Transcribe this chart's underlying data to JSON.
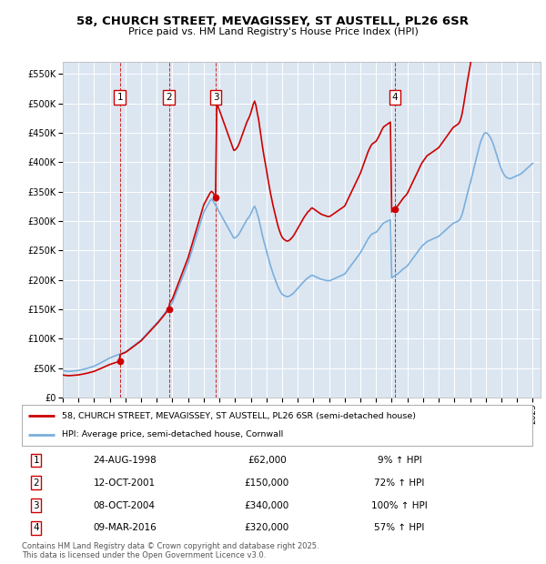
{
  "title_line1": "58, CHURCH STREET, MEVAGISSEY, ST AUSTELL, PL26 6SR",
  "title_line2": "Price paid vs. HM Land Registry's House Price Index (HPI)",
  "plot_bg_color": "#dce6f1",
  "fig_bg_color": "#ffffff",
  "red_color": "#cc0000",
  "blue_color": "#7aafdc",
  "yticks": [
    0,
    50000,
    100000,
    150000,
    200000,
    250000,
    300000,
    350000,
    400000,
    450000,
    500000,
    550000
  ],
  "ylim": [
    0,
    570000
  ],
  "xlim_start": 1995.0,
  "xlim_end": 2025.5,
  "transactions": [
    {
      "num": 1,
      "date_str": "24-AUG-1998",
      "year": 1998.64,
      "price": 62000,
      "pct": "9%",
      "label": "24-AUG-1998",
      "price_label": "£62,000"
    },
    {
      "num": 2,
      "date_str": "12-OCT-2001",
      "year": 2001.78,
      "price": 150000,
      "pct": "72%",
      "label": "12-OCT-2001",
      "price_label": "£150,000"
    },
    {
      "num": 3,
      "date_str": "08-OCT-2004",
      "year": 2004.77,
      "price": 340000,
      "pct": "100%",
      "label": "08-OCT-2004",
      "price_label": "£340,000"
    },
    {
      "num": 4,
      "date_str": "09-MAR-2016",
      "year": 2016.19,
      "price": 320000,
      "pct": "57%",
      "label": "09-MAR-2016",
      "price_label": "£320,000"
    }
  ],
  "legend_label_red": "58, CHURCH STREET, MEVAGISSEY, ST AUSTELL, PL26 6SR (semi-detached house)",
  "legend_label_blue": "HPI: Average price, semi-detached house, Cornwall",
  "footer": "Contains HM Land Registry data © Crown copyright and database right 2025.\nThis data is licensed under the Open Government Licence v3.0.",
  "hpi_years": [
    1995.0,
    1995.083,
    1995.167,
    1995.25,
    1995.333,
    1995.417,
    1995.5,
    1995.583,
    1995.667,
    1995.75,
    1995.833,
    1995.917,
    1996.0,
    1996.083,
    1996.167,
    1996.25,
    1996.333,
    1996.417,
    1996.5,
    1996.583,
    1996.667,
    1996.75,
    1996.833,
    1996.917,
    1997.0,
    1997.083,
    1997.167,
    1997.25,
    1997.333,
    1997.417,
    1997.5,
    1997.583,
    1997.667,
    1997.75,
    1997.833,
    1997.917,
    1998.0,
    1998.083,
    1998.167,
    1998.25,
    1998.333,
    1998.417,
    1998.5,
    1998.583,
    1998.667,
    1998.75,
    1998.833,
    1998.917,
    1999.0,
    1999.083,
    1999.167,
    1999.25,
    1999.333,
    1999.417,
    1999.5,
    1999.583,
    1999.667,
    1999.75,
    1999.833,
    1999.917,
    2000.0,
    2000.083,
    2000.167,
    2000.25,
    2000.333,
    2000.417,
    2000.5,
    2000.583,
    2000.667,
    2000.75,
    2000.833,
    2000.917,
    2001.0,
    2001.083,
    2001.167,
    2001.25,
    2001.333,
    2001.417,
    2001.5,
    2001.583,
    2001.667,
    2001.75,
    2001.833,
    2001.917,
    2002.0,
    2002.083,
    2002.167,
    2002.25,
    2002.333,
    2002.417,
    2002.5,
    2002.583,
    2002.667,
    2002.75,
    2002.833,
    2002.917,
    2003.0,
    2003.083,
    2003.167,
    2003.25,
    2003.333,
    2003.417,
    2003.5,
    2003.583,
    2003.667,
    2003.75,
    2003.833,
    2003.917,
    2004.0,
    2004.083,
    2004.167,
    2004.25,
    2004.333,
    2004.417,
    2004.5,
    2004.583,
    2004.667,
    2004.75,
    2004.833,
    2004.917,
    2005.0,
    2005.083,
    2005.167,
    2005.25,
    2005.333,
    2005.417,
    2005.5,
    2005.583,
    2005.667,
    2005.75,
    2005.833,
    2005.917,
    2006.0,
    2006.083,
    2006.167,
    2006.25,
    2006.333,
    2006.417,
    2006.5,
    2006.583,
    2006.667,
    2006.75,
    2006.833,
    2006.917,
    2007.0,
    2007.083,
    2007.167,
    2007.25,
    2007.333,
    2007.417,
    2007.5,
    2007.583,
    2007.667,
    2007.75,
    2007.833,
    2007.917,
    2008.0,
    2008.083,
    2008.167,
    2008.25,
    2008.333,
    2008.417,
    2008.5,
    2008.583,
    2008.667,
    2008.75,
    2008.833,
    2008.917,
    2009.0,
    2009.083,
    2009.167,
    2009.25,
    2009.333,
    2009.417,
    2009.5,
    2009.583,
    2009.667,
    2009.75,
    2009.833,
    2009.917,
    2010.0,
    2010.083,
    2010.167,
    2010.25,
    2010.333,
    2010.417,
    2010.5,
    2010.583,
    2010.667,
    2010.75,
    2010.833,
    2010.917,
    2011.0,
    2011.083,
    2011.167,
    2011.25,
    2011.333,
    2011.417,
    2011.5,
    2011.583,
    2011.667,
    2011.75,
    2011.833,
    2011.917,
    2012.0,
    2012.083,
    2012.167,
    2012.25,
    2012.333,
    2012.417,
    2012.5,
    2012.583,
    2012.667,
    2012.75,
    2012.833,
    2012.917,
    2013.0,
    2013.083,
    2013.167,
    2013.25,
    2013.333,
    2013.417,
    2013.5,
    2013.583,
    2013.667,
    2013.75,
    2013.833,
    2013.917,
    2014.0,
    2014.083,
    2014.167,
    2014.25,
    2014.333,
    2014.417,
    2014.5,
    2014.583,
    2014.667,
    2014.75,
    2014.833,
    2014.917,
    2015.0,
    2015.083,
    2015.167,
    2015.25,
    2015.333,
    2015.417,
    2015.5,
    2015.583,
    2015.667,
    2015.75,
    2015.833,
    2015.917,
    2016.0,
    2016.083,
    2016.167,
    2016.25,
    2016.333,
    2016.417,
    2016.5,
    2016.583,
    2016.667,
    2016.75,
    2016.833,
    2016.917,
    2017.0,
    2017.083,
    2017.167,
    2017.25,
    2017.333,
    2017.417,
    2017.5,
    2017.583,
    2017.667,
    2017.75,
    2017.833,
    2017.917,
    2018.0,
    2018.083,
    2018.167,
    2018.25,
    2018.333,
    2018.417,
    2018.5,
    2018.583,
    2018.667,
    2018.75,
    2018.833,
    2018.917,
    2019.0,
    2019.083,
    2019.167,
    2019.25,
    2019.333,
    2019.417,
    2019.5,
    2019.583,
    2019.667,
    2019.75,
    2019.833,
    2019.917,
    2020.0,
    2020.083,
    2020.167,
    2020.25,
    2020.333,
    2020.417,
    2020.5,
    2020.583,
    2020.667,
    2020.75,
    2020.833,
    2020.917,
    2021.0,
    2021.083,
    2021.167,
    2021.25,
    2021.333,
    2021.417,
    2021.5,
    2021.583,
    2021.667,
    2021.75,
    2021.833,
    2021.917,
    2022.0,
    2022.083,
    2022.167,
    2022.25,
    2022.333,
    2022.417,
    2022.5,
    2022.583,
    2022.667,
    2022.75,
    2022.833,
    2022.917,
    2023.0,
    2023.083,
    2023.167,
    2023.25,
    2023.333,
    2023.417,
    2023.5,
    2023.583,
    2023.667,
    2023.75,
    2023.833,
    2023.917,
    2024.0,
    2024.083,
    2024.167,
    2024.25,
    2024.333,
    2024.417,
    2024.5,
    2024.583,
    2024.667,
    2024.75,
    2024.833,
    2024.917,
    2025.0
  ],
  "hpi_values": [
    46000,
    45500,
    45200,
    45000,
    44800,
    44600,
    44900,
    45100,
    45300,
    45500,
    45700,
    45900,
    46200,
    46800,
    47200,
    47600,
    48100,
    48700,
    49300,
    49900,
    50600,
    51300,
    52000,
    52700,
    53400,
    54500,
    55600,
    56700,
    57800,
    59000,
    60200,
    61400,
    62600,
    63800,
    65000,
    66200,
    67400,
    68200,
    69100,
    70000,
    70800,
    71700,
    72500,
    73400,
    74200,
    75100,
    75900,
    76800,
    77600,
    79200,
    80900,
    82600,
    84200,
    85900,
    87600,
    89200,
    90900,
    92600,
    94200,
    95900,
    97600,
    100000,
    102400,
    104800,
    107200,
    109600,
    112000,
    114400,
    116800,
    119200,
    121600,
    124000,
    126400,
    129000,
    131700,
    134400,
    137200,
    140000,
    142800,
    145700,
    148700,
    151800,
    155000,
    158200,
    161500,
    167000,
    172600,
    178200,
    183800,
    189400,
    195000,
    200600,
    206200,
    211800,
    217400,
    223000,
    228600,
    235800,
    243000,
    250200,
    257400,
    264600,
    271800,
    279000,
    286200,
    293400,
    300600,
    307800,
    315000,
    319000,
    323000,
    327000,
    331000,
    335000,
    337000,
    335000,
    331000,
    327000,
    323000,
    319000,
    315000,
    311000,
    307000,
    303000,
    299000,
    295000,
    291000,
    287000,
    283000,
    279000,
    275000,
    271000,
    271500,
    273000,
    275000,
    278000,
    282000,
    286000,
    290000,
    294000,
    298000,
    302000,
    305000,
    308000,
    312000,
    317000,
    322000,
    325000,
    320000,
    312000,
    305000,
    295000,
    285000,
    275000,
    266000,
    258000,
    250000,
    241000,
    233000,
    225000,
    218000,
    211000,
    205000,
    199000,
    193000,
    187500,
    183000,
    179000,
    176000,
    174000,
    173000,
    172000,
    171500,
    172000,
    173000,
    174500,
    176000,
    178000,
    180500,
    183000,
    185500,
    188000,
    190500,
    193000,
    195500,
    198000,
    200000,
    202000,
    204000,
    205000,
    207000,
    208000,
    207000,
    206000,
    205000,
    204000,
    203000,
    202000,
    201000,
    200500,
    200000,
    199500,
    199000,
    198500,
    198500,
    199000,
    200000,
    201000,
    202000,
    203000,
    204000,
    205000,
    206000,
    207000,
    208000,
    209000,
    210000,
    213000,
    216000,
    219000,
    222000,
    225000,
    228000,
    231000,
    234000,
    237000,
    240000,
    243000,
    246000,
    250000,
    254000,
    258000,
    262000,
    266000,
    270000,
    273000,
    276000,
    278000,
    279000,
    280000,
    281000,
    283500,
    286000,
    289000,
    292000,
    295000,
    297000,
    298000,
    299000,
    300000,
    301000,
    302000,
    203500,
    205000,
    206500,
    208000,
    209500,
    211000,
    213000,
    215000,
    217000,
    219000,
    220500,
    222000,
    224000,
    227000,
    230000,
    233000,
    236000,
    239000,
    242000,
    245000,
    248000,
    251000,
    254000,
    257000,
    259000,
    261000,
    263000,
    265000,
    266000,
    267000,
    268000,
    269000,
    270000,
    271000,
    272000,
    273000,
    274000,
    276000,
    278000,
    280000,
    282000,
    284000,
    286000,
    288000,
    290000,
    292000,
    294000,
    296000,
    297000,
    298000,
    299000,
    300000,
    302000,
    306000,
    312000,
    320000,
    329000,
    338000,
    347000,
    355000,
    363000,
    372000,
    381000,
    390000,
    399000,
    408000,
    417000,
    426000,
    434000,
    440000,
    445000,
    449000,
    450000,
    449000,
    447000,
    444000,
    440000,
    435000,
    429000,
    422000,
    415000,
    408000,
    401000,
    394000,
    388000,
    383000,
    379000,
    376000,
    374000,
    373000,
    372000,
    372000,
    373000,
    374000,
    375000,
    376000,
    377000,
    378000,
    379000,
    380000,
    382000,
    384000,
    386000,
    388000,
    390000,
    392000,
    394000,
    396000,
    398000
  ]
}
